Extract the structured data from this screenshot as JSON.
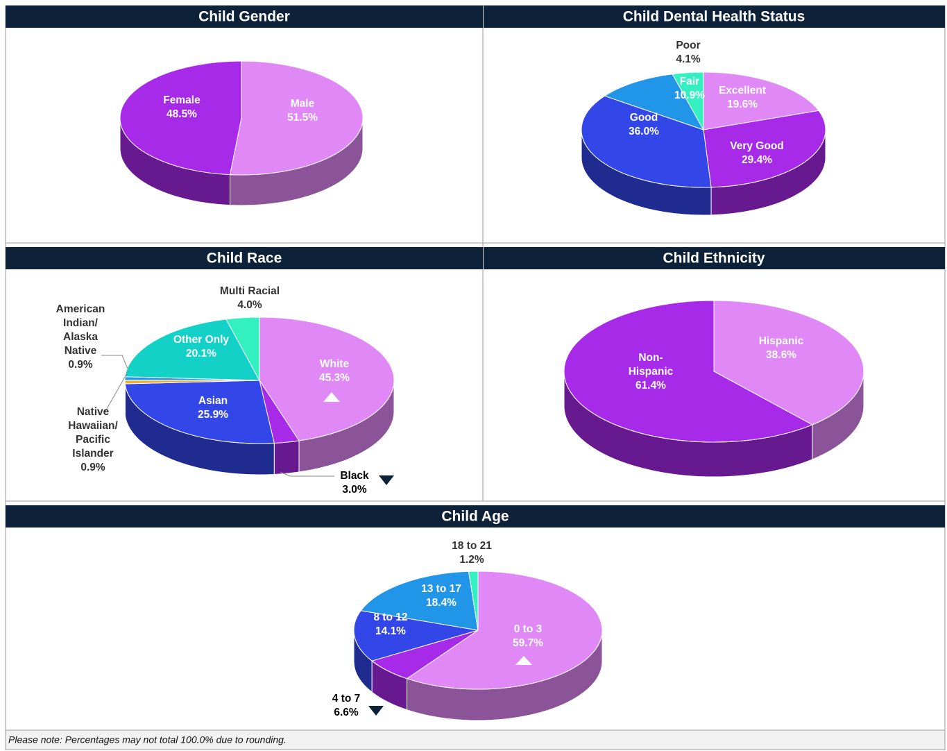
{
  "chart_data": [
    {
      "type": "pie3d",
      "title": "Child Gender",
      "categories": [
        "Male",
        "Female"
      ],
      "values": [
        51.5,
        48.5
      ],
      "value_labels": [
        "51.5%",
        "48.5%"
      ],
      "colors": [
        "#e088f5",
        "#a62ae8"
      ]
    },
    {
      "type": "pie3d",
      "title": "Child Dental Health Status",
      "categories": [
        "Excellent",
        "Very Good",
        "Good",
        "Fair",
        "Poor"
      ],
      "values": [
        19.6,
        29.4,
        36.0,
        10.9,
        4.1
      ],
      "value_labels": [
        "19.6%",
        "29.4%",
        "36.0%",
        "10.9%",
        "4.1%"
      ],
      "colors": [
        "#e088f5",
        "#a62ae8",
        "#3346e8",
        "#2196e8",
        "#33f0c0"
      ]
    },
    {
      "type": "pie3d",
      "title": "Child Race",
      "categories": [
        "White",
        "Black",
        "Asian",
        "Native Hawaiian/ Pacific Islander",
        "American Indian/ Alaska Native",
        "Other Only",
        "Multi Racial"
      ],
      "values": [
        45.3,
        3.0,
        25.9,
        0.9,
        0.9,
        20.1,
        4.0
      ],
      "value_labels": [
        "45.3%",
        "3.0%",
        "25.9%",
        "0.9%",
        "0.9%",
        "20.1%",
        "4.0%"
      ],
      "colors": [
        "#e088f5",
        "#a62ae8",
        "#3346e8",
        "#f0b030",
        "#2196e8",
        "#14d1c8",
        "#33f0c0"
      ]
    },
    {
      "type": "pie3d",
      "title": "Child Ethnicity",
      "categories": [
        "Hispanic",
        "Non-Hispanic"
      ],
      "values": [
        38.6,
        61.4
      ],
      "value_labels": [
        "38.6%",
        "61.4%"
      ],
      "colors": [
        "#e088f5",
        "#a62ae8"
      ]
    },
    {
      "type": "pie3d",
      "title": "Child Age",
      "categories": [
        "0 to 3",
        "4 to 7",
        "8 to 12",
        "13 to 17",
        "18 to 21"
      ],
      "values": [
        59.7,
        6.6,
        14.1,
        18.4,
        1.2
      ],
      "value_labels": [
        "59.7%",
        "6.6%",
        "14.1%",
        "18.4%",
        "1.2%"
      ],
      "colors": [
        "#e088f5",
        "#a62ae8",
        "#3346e8",
        "#2196e8",
        "#33f0c0"
      ]
    }
  ],
  "footnote": "Please note:  Percentages may not total 100.0% due to rounding."
}
